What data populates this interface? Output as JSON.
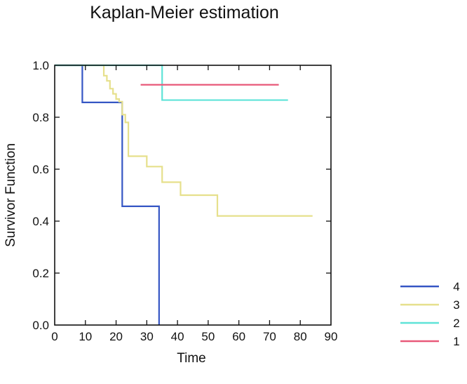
{
  "chart_data": {
    "type": "line",
    "step": true,
    "title": "Kaplan-Meier estimation",
    "xlabel": "Time",
    "ylabel": "Survivor Function",
    "xlim": [
      0,
      90
    ],
    "ylim": [
      0,
      1
    ],
    "xticks": [
      "0",
      "10",
      "20",
      "30",
      "40",
      "50",
      "60",
      "70",
      "80",
      "90"
    ],
    "yticks": [
      "0.0",
      "0.2",
      "0.4",
      "0.6",
      "0.8",
      "1.0"
    ],
    "grid": false,
    "legend_position": "bottom-right",
    "series": [
      {
        "name": "4",
        "color": "#3556c4",
        "x": [
          0,
          9,
          22,
          34,
          34
        ],
        "y": [
          1.0,
          0.857,
          0.457,
          0.457,
          0.0
        ]
      },
      {
        "name": "3",
        "color": "#e6e08c",
        "x": [
          0,
          16,
          17,
          18,
          19,
          20,
          21,
          22,
          23,
          24,
          30,
          35,
          41,
          53,
          84
        ],
        "y": [
          1.0,
          0.96,
          0.94,
          0.91,
          0.89,
          0.87,
          0.86,
          0.81,
          0.78,
          0.65,
          0.61,
          0.55,
          0.5,
          0.42,
          0.42
        ]
      },
      {
        "name": "2",
        "color": "#5fe3d8",
        "x": [
          0,
          35,
          76
        ],
        "y": [
          1.0,
          0.866,
          0.866
        ]
      },
      {
        "name": "1",
        "color": "#e85a7a",
        "x": [
          28,
          73
        ],
        "y": [
          0.925,
          0.925
        ]
      }
    ]
  }
}
